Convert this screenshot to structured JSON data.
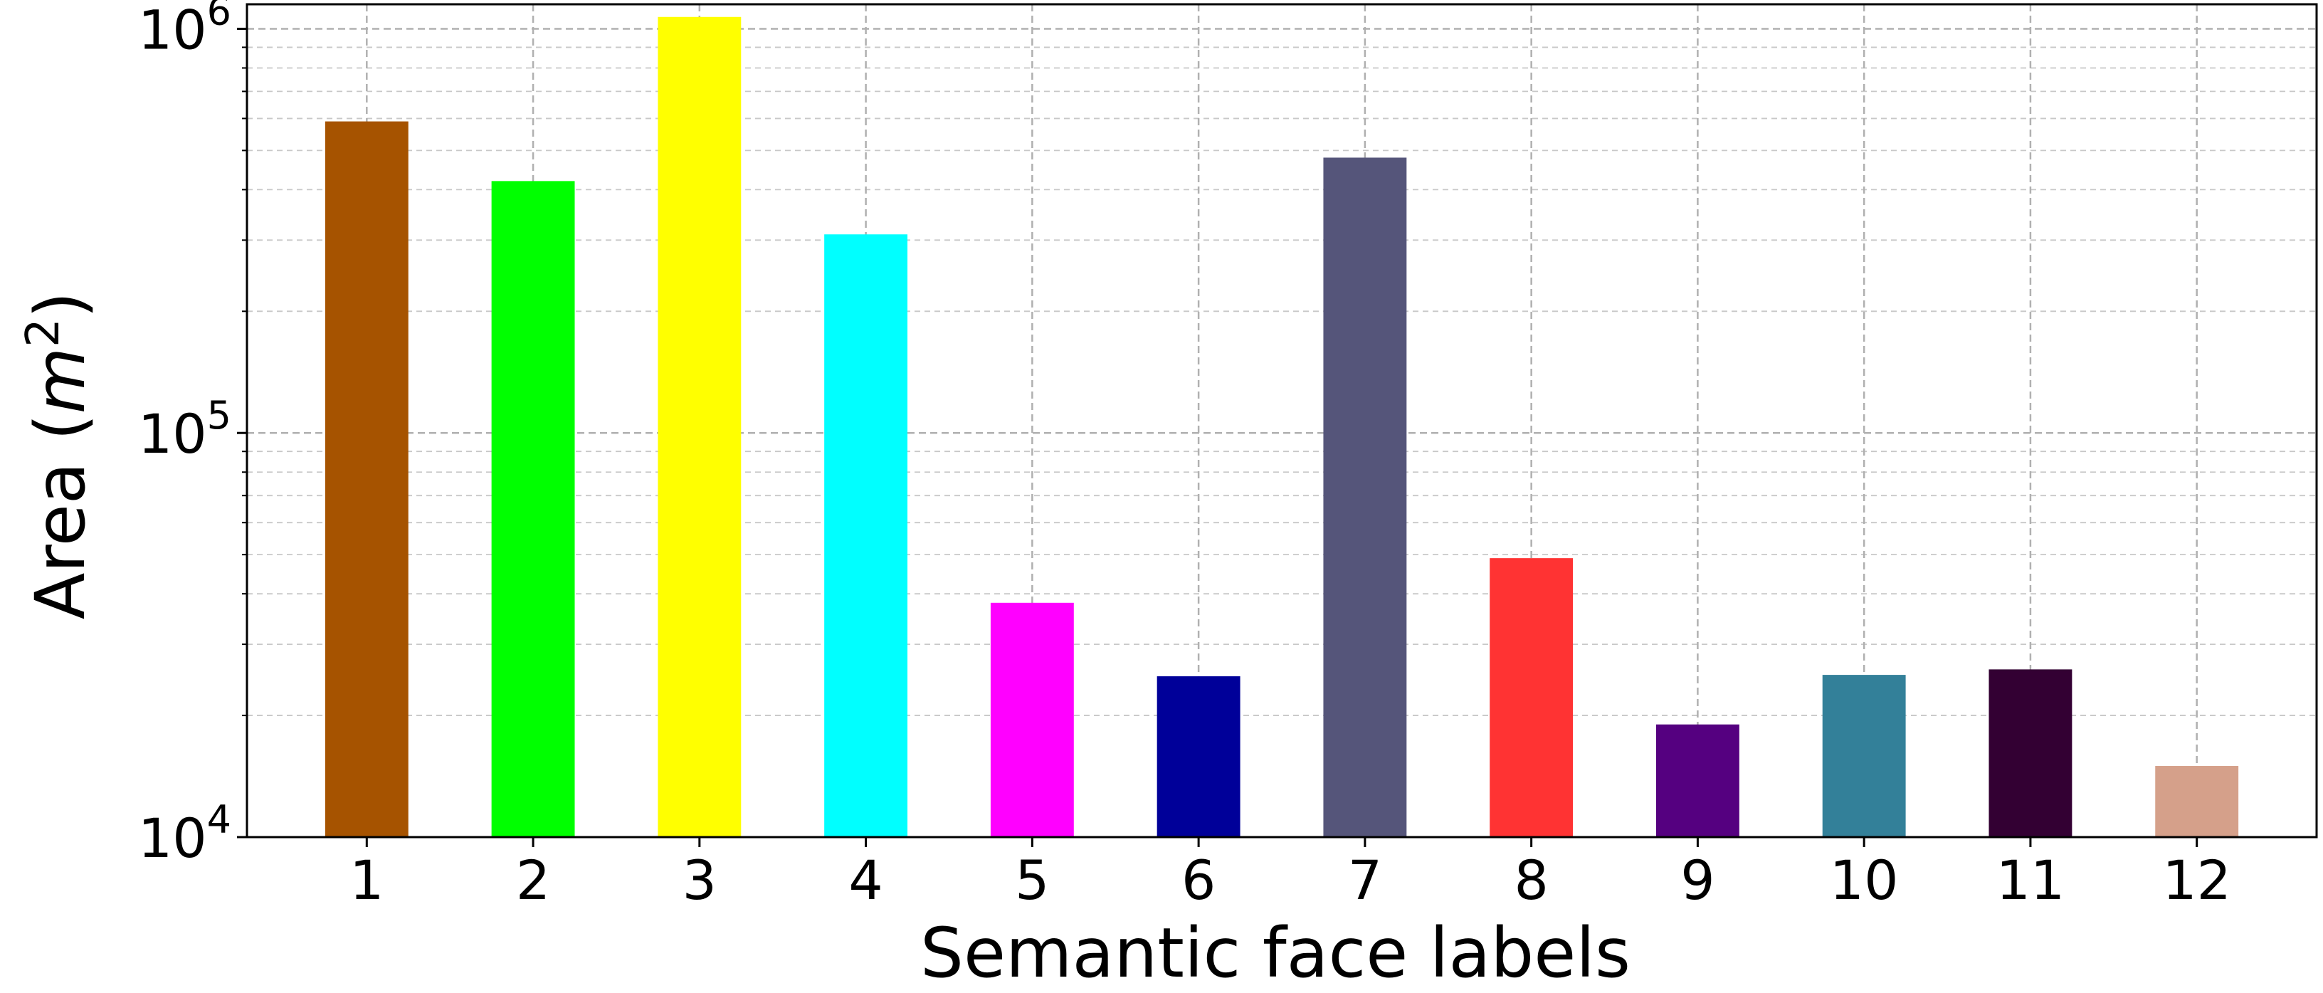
{
  "chart_data": {
    "type": "bar",
    "scale_y": "log",
    "categories": [
      "1",
      "2",
      "3",
      "4",
      "5",
      "6",
      "7",
      "8",
      "9",
      "10",
      "11",
      "12"
    ],
    "values": [
      590000,
      420000,
      1070000,
      310000,
      38000,
      25000,
      480000,
      49000,
      19000,
      25200,
      26000,
      15000
    ],
    "colors": [
      "#a65300",
      "#00ff00",
      "#ffff00",
      "#00ffff",
      "#ff00ff",
      "#000099",
      "#55557a",
      "#ff3333",
      "#550080",
      "#338099",
      "#330033",
      "#d5a08a"
    ],
    "xlabel": "Semantic face labels",
    "ylabel_prefix": "Area (",
    "ylabel_var": "m",
    "ylabel_exp": "2",
    "ylabel_suffix": ")",
    "ylim": [
      10000,
      1150000
    ],
    "yticks": [
      {
        "value": 10000,
        "base": "10",
        "exp": "4"
      },
      {
        "value": 100000,
        "base": "10",
        "exp": "5"
      },
      {
        "value": 1000000,
        "base": "10",
        "exp": "6"
      }
    ],
    "grid": true
  }
}
